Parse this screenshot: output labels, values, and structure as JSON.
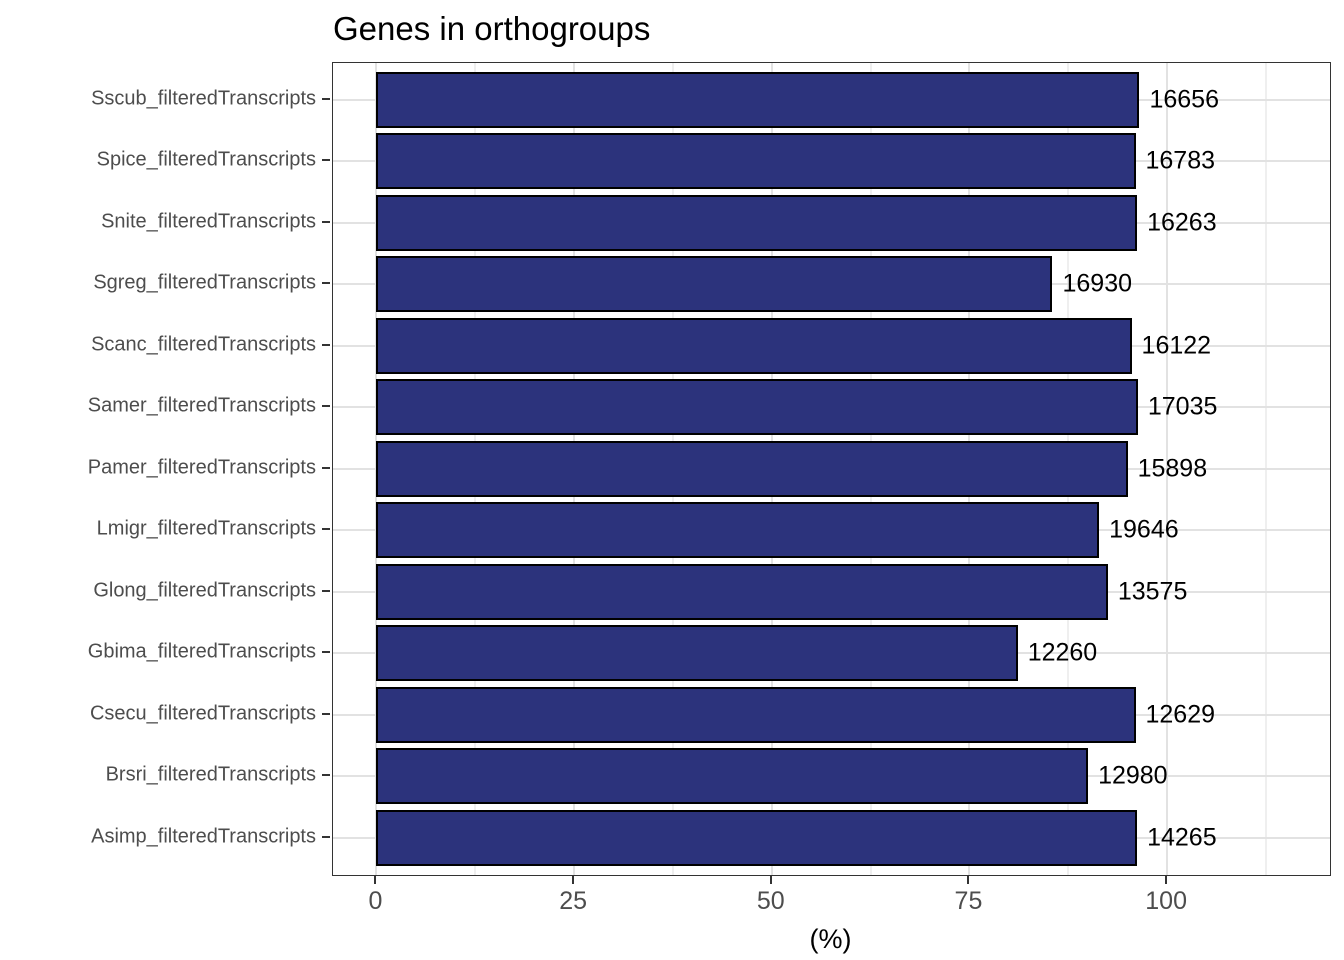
{
  "title": "Genes in orthogroups",
  "colors": {
    "bar_fill": "#2c337c",
    "bar_border": "#000000",
    "panel_border": "#333333",
    "grid_major": "#e2e2e2",
    "grid_minor": "#efefef",
    "axis_text": "#4d4d4d",
    "value_label_text": "#000000",
    "background": "#ffffff"
  },
  "chart_data": {
    "type": "bar",
    "orientation": "horizontal",
    "title": "Genes in orthogroups",
    "xlabel": "(%)",
    "ylabel": "",
    "categories": [
      "Sscub_filteredTranscripts",
      "Spice_filteredTranscripts",
      "Snite_filteredTranscripts",
      "Sgreg_filteredTranscripts",
      "Scanc_filteredTranscripts",
      "Samer_filteredTranscripts",
      "Pamer_filteredTranscripts",
      "Lmigr_filteredTranscripts",
      "Glong_filteredTranscripts",
      "Gbima_filteredTranscripts",
      "Csecu_filteredTranscripts",
      "Brsri_filteredTranscripts",
      "Asimp_filteredTranscripts"
    ],
    "values": [
      96.5,
      96.0,
      96.2,
      85.5,
      95.5,
      96.3,
      95.0,
      91.4,
      92.5,
      81.1,
      96.0,
      90.0,
      96.2
    ],
    "bar_labels": [
      "16656",
      "16783",
      "16263",
      "16930",
      "16122",
      "17035",
      "15898",
      "19646",
      "13575",
      "12260",
      "12629",
      "12980",
      "14265"
    ],
    "xticks": [
      0,
      25,
      50,
      75,
      100
    ],
    "xtick_labels": [
      "0",
      "25",
      "50",
      "75",
      "100"
    ],
    "xticks_minor": [
      12.5,
      37.5,
      62.5,
      87.5,
      112.5
    ],
    "xlim": [
      -5.5,
      120.6
    ],
    "grid": true,
    "legend": false
  }
}
